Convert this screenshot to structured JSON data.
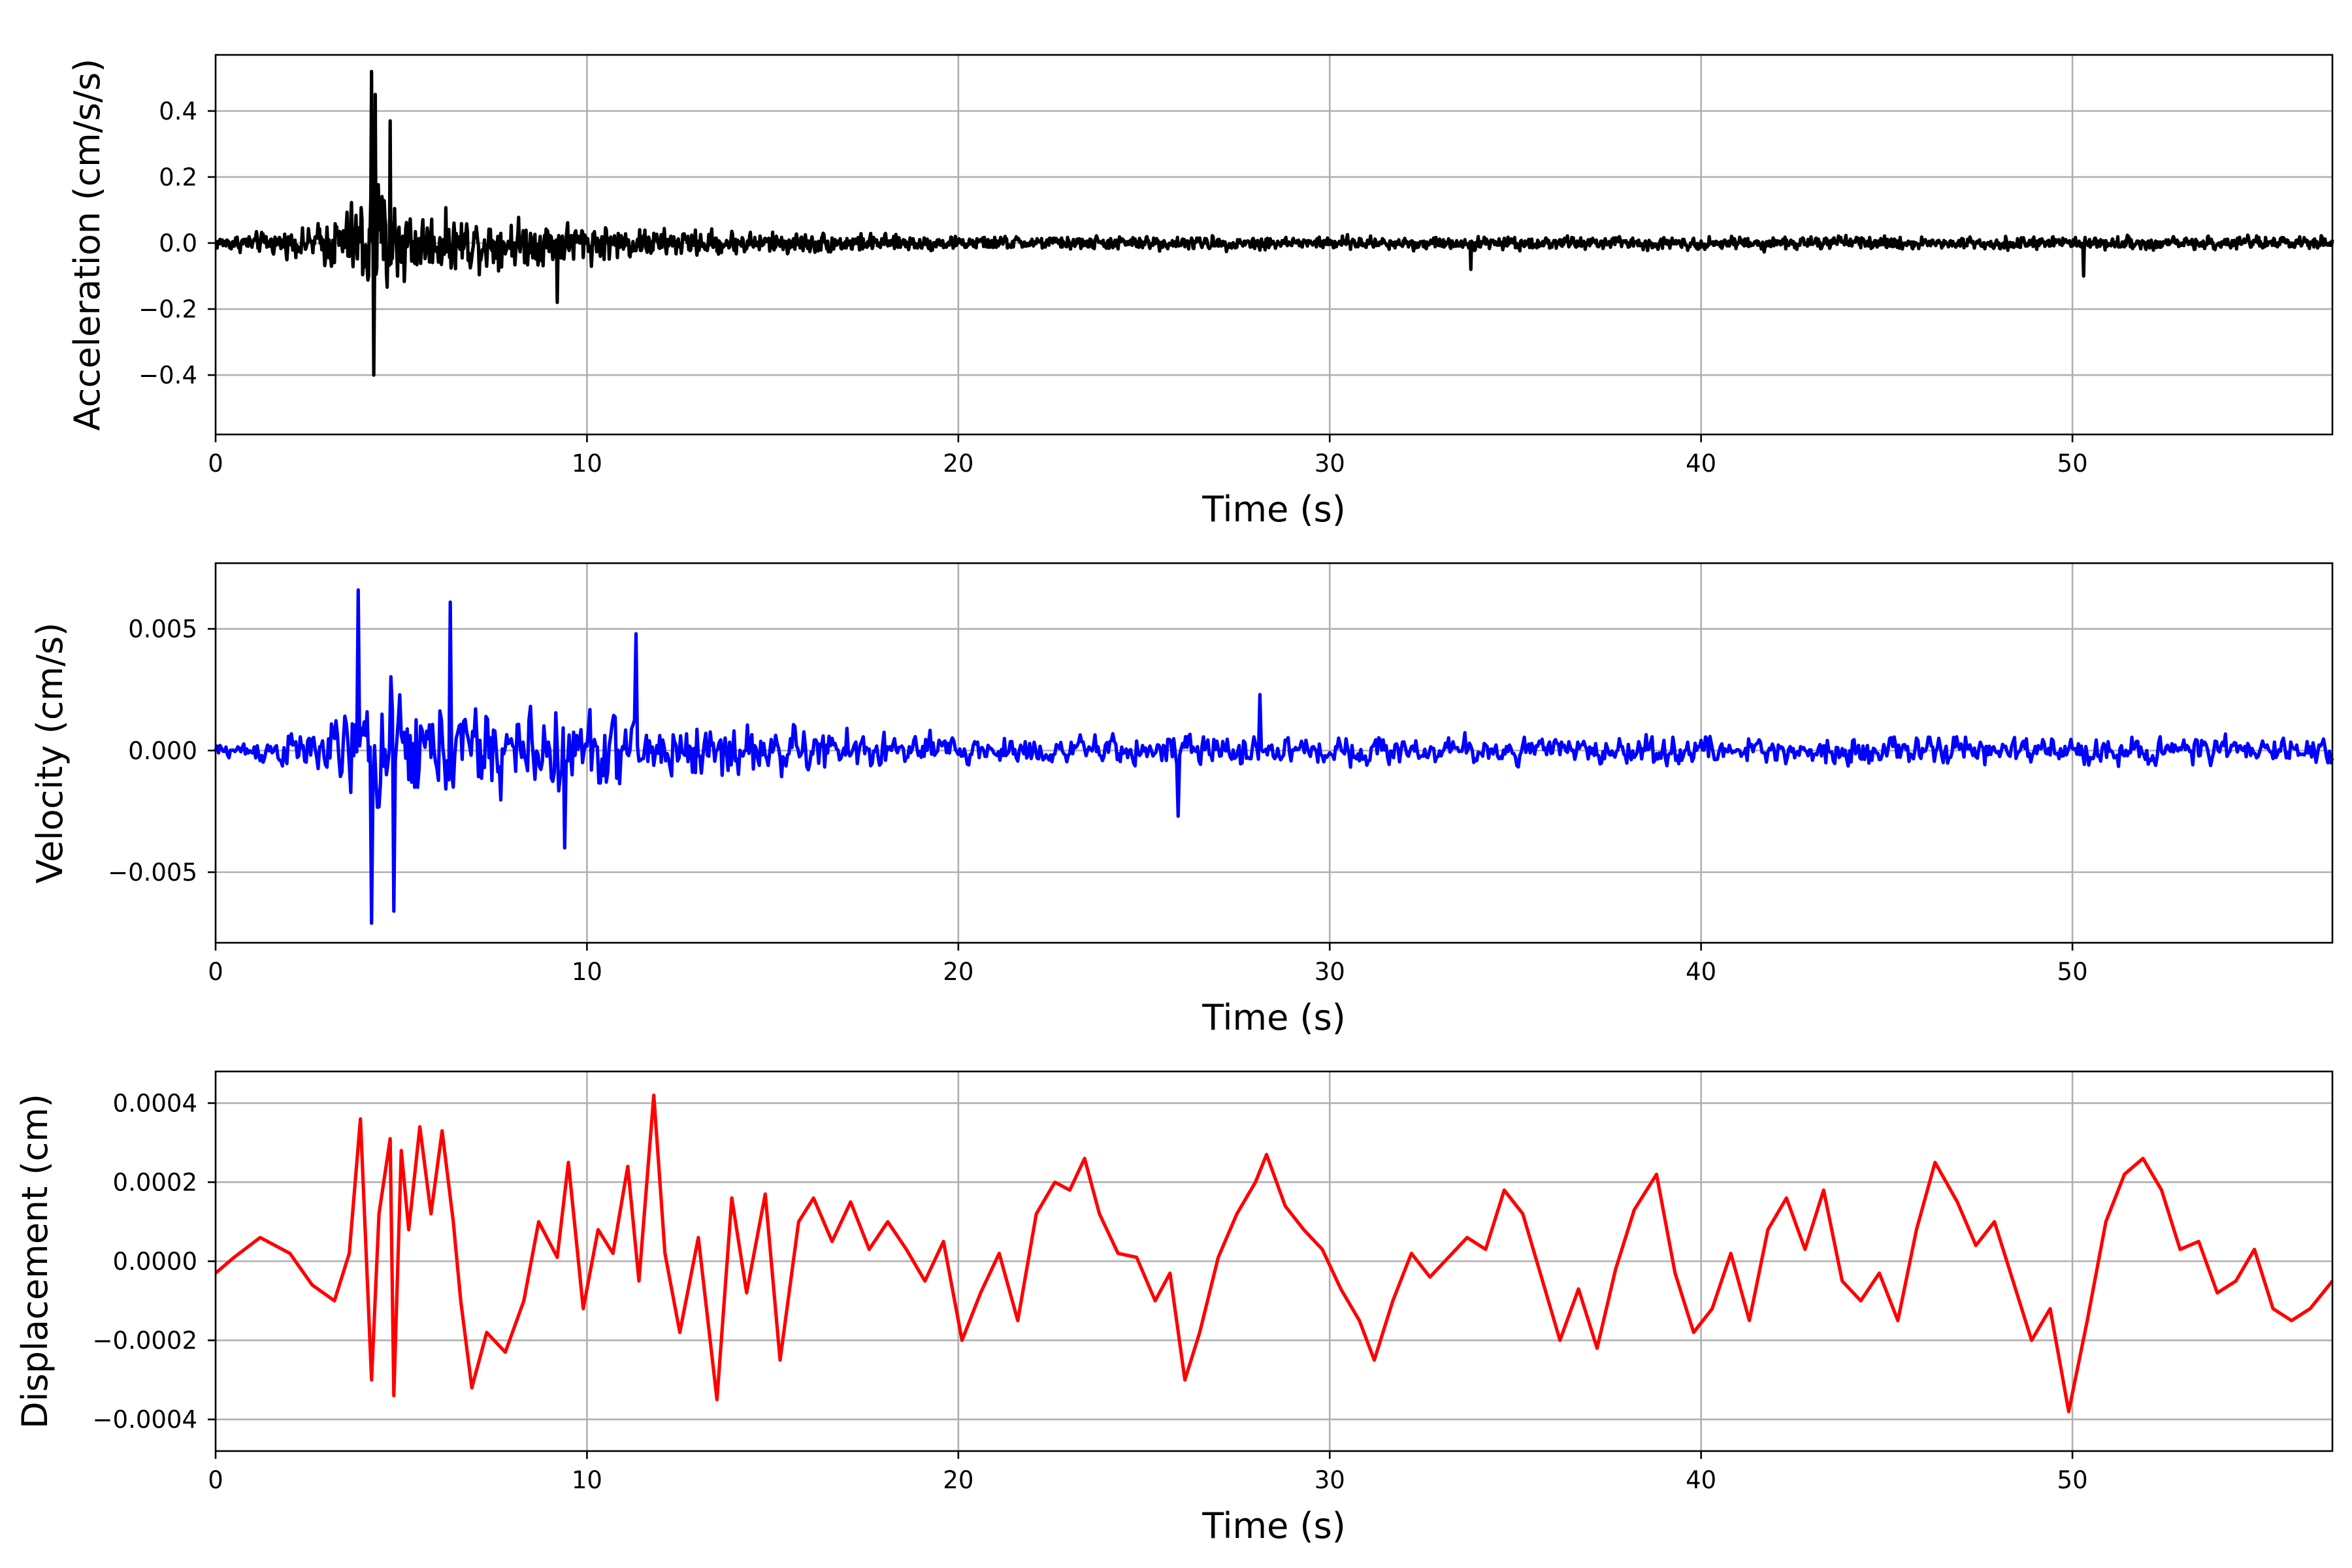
{
  "chart_data": [
    {
      "type": "line",
      "xlabel": "Time (s)",
      "ylabel": "Acceleration (cm/s/s)",
      "xlim": [
        0,
        57
      ],
      "ylim": [
        -0.58,
        0.57
      ],
      "xticks": [
        0,
        10,
        20,
        30,
        40,
        50
      ],
      "xtick_labels": [
        "0",
        "10",
        "20",
        "30",
        "40",
        "50"
      ],
      "yticks": [
        0.4,
        0.2,
        0.0,
        -0.2,
        -0.4
      ],
      "ytick_labels": [
        "0.4",
        "0.2",
        "0.0",
        "−0.2",
        "−0.4"
      ],
      "grid": true,
      "color": "#000000",
      "sample_rate_hz": 50,
      "envelope": {
        "t": [
          0,
          2.5,
          3.8,
          4.2,
          5.5,
          9,
          12,
          20,
          57
        ],
        "amp": [
          0.05,
          0.1,
          0.3,
          0.5,
          0.22,
          0.16,
          0.1,
          0.05,
          0.045
        ]
      },
      "features": [
        [
          4.2,
          0.52
        ],
        [
          4.25,
          -0.4
        ],
        [
          4.7,
          0.37
        ],
        [
          4.3,
          0.45
        ],
        [
          9.2,
          -0.18
        ],
        [
          33.8,
          -0.08
        ],
        [
          50.3,
          -0.1
        ]
      ]
    },
    {
      "type": "line",
      "xlabel": "Time (s)",
      "ylabel": "Velocity (cm/s)",
      "xlim": [
        0,
        57
      ],
      "ylim": [
        -0.0079,
        0.0077
      ],
      "xticks": [
        0,
        10,
        20,
        30,
        40,
        50
      ],
      "xtick_labels": [
        "0",
        "10",
        "20",
        "30",
        "40",
        "50"
      ],
      "yticks": [
        0.005,
        0.0,
        -0.005
      ],
      "ytick_labels": [
        "0.005",
        "0.000",
        "−0.005"
      ],
      "grid": true,
      "color": "#0000ff",
      "sample_rate_hz": 25,
      "envelope": {
        "t": [
          0,
          3,
          4,
          4.5,
          6,
          10,
          13,
          20,
          57
        ],
        "amp": [
          0.0006,
          0.0025,
          0.006,
          0.0065,
          0.005,
          0.004,
          0.003,
          0.0015,
          0.0013
        ]
      },
      "features": [
        [
          3.85,
          0.0066
        ],
        [
          4.2,
          -0.0071
        ],
        [
          4.8,
          -0.0066
        ],
        [
          6.3,
          0.0061
        ],
        [
          11.3,
          0.0048
        ],
        [
          9.4,
          -0.004
        ],
        [
          25.9,
          -0.0027
        ],
        [
          28.1,
          0.0023
        ]
      ]
    },
    {
      "type": "line",
      "xlabel": "Time (s)",
      "ylabel": "Displacement (cm)",
      "xlim": [
        0,
        57
      ],
      "ylim": [
        -0.00048,
        0.00048
      ],
      "xticks": [
        0,
        10,
        20,
        30,
        40,
        50
      ],
      "xtick_labels": [
        "0",
        "10",
        "20",
        "30",
        "40",
        "50"
      ],
      "yticks": [
        0.0004,
        0.0002,
        0.0,
        -0.0002,
        -0.0004
      ],
      "ytick_labels": [
        "0.0004",
        "0.0002",
        "0.0000",
        "−0.0002",
        "−0.0004"
      ],
      "grid": true,
      "color": "#ff0000",
      "x": [
        0,
        0.5,
        1.2,
        2,
        2.6,
        3.2,
        3.6,
        3.9,
        4.2,
        4.4,
        4.7,
        4.8,
        5.0,
        5.2,
        5.5,
        5.8,
        6.1,
        6.4,
        6.6,
        6.9,
        7.3,
        7.8,
        8.3,
        8.7,
        9.2,
        9.5,
        9.9,
        10.3,
        10.7,
        11.1,
        11.4,
        11.8,
        12.1,
        12.5,
        13.0,
        13.5,
        13.9,
        14.3,
        14.8,
        15.2,
        15.7,
        16.1,
        16.6,
        17.1,
        17.6,
        18.1,
        18.6,
        19.1,
        19.6,
        20.1,
        20.6,
        21.1,
        21.6,
        22.1,
        22.6,
        23.0,
        23.4,
        23.8,
        24.3,
        24.8,
        25.3,
        25.7,
        26.1,
        26.5,
        27.0,
        27.5,
        28.0,
        28.3,
        28.8,
        29.3,
        29.8,
        30.3,
        30.8,
        31.2,
        31.7,
        32.2,
        32.7,
        33.2,
        33.7,
        34.2,
        34.7,
        35.2,
        35.7,
        36.2,
        36.7,
        37.2,
        37.7,
        38.2,
        38.8,
        39.3,
        39.8,
        40.3,
        40.8,
        41.3,
        41.8,
        42.3,
        42.8,
        43.3,
        43.8,
        44.3,
        44.8,
        45.3,
        45.8,
        46.3,
        46.9,
        47.4,
        47.9,
        48.4,
        48.9,
        49.4,
        49.9,
        50.4,
        50.9,
        51.4,
        51.9,
        52.4,
        52.9,
        53.4,
        53.9,
        54.4,
        54.9,
        55.4,
        55.9,
        56.4,
        57
      ],
      "y": [
        -3e-05,
        1e-05,
        6e-05,
        2e-05,
        -6e-05,
        -0.0001,
        2e-05,
        0.00036,
        -0.0003,
        0.00012,
        0.00031,
        -0.00034,
        0.00028,
        8e-05,
        0.00034,
        0.00012,
        0.00033,
        0.0001,
        -0.0001,
        -0.00032,
        -0.00018,
        -0.00023,
        -0.0001,
        0.0001,
        1e-05,
        0.00025,
        -0.00012,
        8e-05,
        2e-05,
        0.00024,
        -5e-05,
        0.00042,
        2e-05,
        -0.00018,
        6e-05,
        -0.00035,
        0.00016,
        -8e-05,
        0.00017,
        -0.00025,
        0.0001,
        0.00016,
        5e-05,
        0.00015,
        3e-05,
        0.0001,
        3e-05,
        -5e-05,
        5e-05,
        -0.0002,
        -8e-05,
        2e-05,
        -0.00015,
        0.00012,
        0.0002,
        0.00018,
        0.00026,
        0.00012,
        2e-05,
        1e-05,
        -0.0001,
        -3e-05,
        -0.0003,
        -0.00018,
        1e-05,
        0.00012,
        0.0002,
        0.00027,
        0.00014,
        8e-05,
        3e-05,
        -7e-05,
        -0.00015,
        -0.00025,
        -0.0001,
        2e-05,
        -4e-05,
        1e-05,
        6e-05,
        3e-05,
        0.00018,
        0.00012,
        -4e-05,
        -0.0002,
        -7e-05,
        -0.00022,
        -2e-05,
        0.00013,
        0.00022,
        -3e-05,
        -0.00018,
        -0.00012,
        2e-05,
        -0.00015,
        8e-05,
        0.00016,
        3e-05,
        0.00018,
        -5e-05,
        -0.0001,
        -3e-05,
        -0.00015,
        8e-05,
        0.00025,
        0.00015,
        4e-05,
        0.0001,
        -5e-05,
        -0.0002,
        -0.00012,
        -0.00038,
        -0.00015,
        0.0001,
        0.00022,
        0.00026,
        0.00018,
        3e-05,
        5e-05,
        -8e-05,
        -5e-05,
        3e-05,
        -0.00012,
        -0.00015,
        -0.00012,
        -5e-05
      ]
    }
  ]
}
